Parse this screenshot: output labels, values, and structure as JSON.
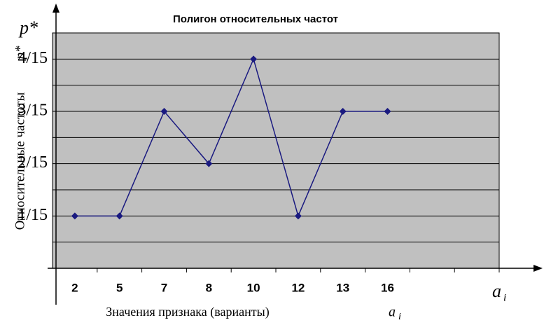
{
  "chart_data": {
    "type": "line",
    "title": "Полигон относительных частот",
    "y_label": "Относительные частоты",
    "y_symbol": "p*",
    "y_symbol_top": "p*",
    "y_symbol_sub": "i",
    "x_label": "Значения признака (варианты)",
    "x_symbol": "a",
    "x_symbol_sub": "i",
    "categories": [
      "2",
      "5",
      "7",
      "8",
      "10",
      "12",
      "13",
      "16",
      null,
      null
    ],
    "series": [
      {
        "color": "#1a1a80",
        "values": [
          0.06667,
          0.06667,
          0.2,
          0.13333,
          0.26667,
          0.06667,
          0.2,
          0.2,
          null,
          null
        ]
      }
    ],
    "ylim": [
      0,
      0.3
    ],
    "yticks": [
      {
        "value": 0.06667,
        "label": "1/15"
      },
      {
        "value": 0.13333,
        "label": "2/15"
      },
      {
        "value": 0.2,
        "label": "3/15"
      },
      {
        "value": 0.26667,
        "label": "4/15"
      }
    ],
    "minor_yticks": [
      0.03333,
      0.1,
      0.16667,
      0.23333,
      0.3
    ],
    "grid": true,
    "background": "#c0c0c0"
  }
}
